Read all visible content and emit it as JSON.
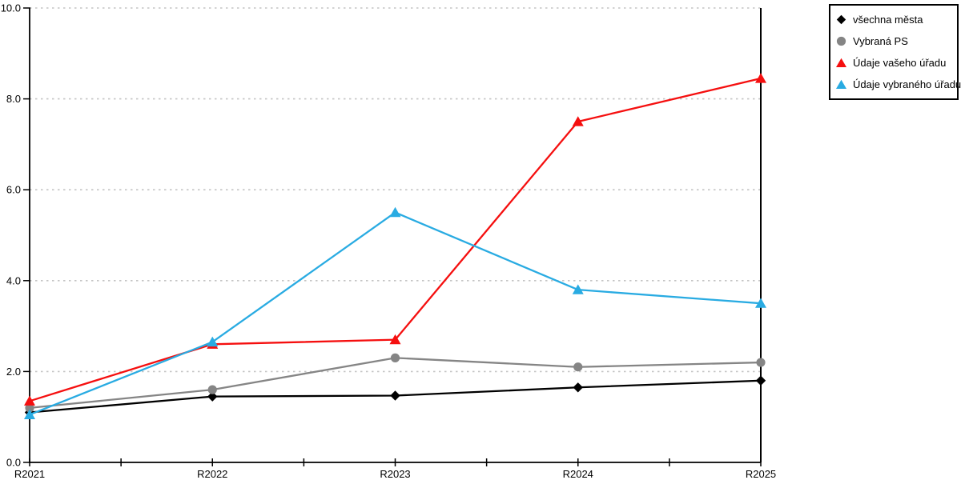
{
  "colors": {
    "background": "#ffffff",
    "grid": "#c4c4c4",
    "axis": "#000000",
    "text": "#000000"
  },
  "chart_data": {
    "type": "line",
    "title": "",
    "xlabel": "",
    "ylabel": "",
    "categories": [
      "R2021",
      "R2022",
      "R2023",
      "R2024",
      "R2025"
    ],
    "series": [
      {
        "name": "všechna města",
        "color": "#000000",
        "marker": "diamond",
        "values": [
          1.1,
          1.45,
          1.47,
          1.65,
          1.8
        ]
      },
      {
        "name": "Vybraná PS",
        "color": "#858585",
        "marker": "circle",
        "values": [
          1.2,
          1.6,
          2.3,
          2.1,
          2.2
        ]
      },
      {
        "name": "Údaje vašeho úřadu",
        "color": "#f50f0f",
        "marker": "triangle",
        "values": [
          1.35,
          2.6,
          2.7,
          7.5,
          8.45
        ]
      },
      {
        "name": "Údaje vybraného úřadu",
        "color": "#29abe2",
        "marker": "triangle",
        "values": [
          1.05,
          2.65,
          5.5,
          3.8,
          3.5
        ]
      }
    ],
    "ylim": [
      0,
      10
    ],
    "ytick_step": 2,
    "ytick_labels": [
      "0.0",
      "2.0",
      "4.0",
      "6.0",
      "8.0",
      "10.0"
    ],
    "grid": "horizontal-dotted",
    "x_minor_ticks_between_categories": true,
    "legend_position": "top-right"
  }
}
